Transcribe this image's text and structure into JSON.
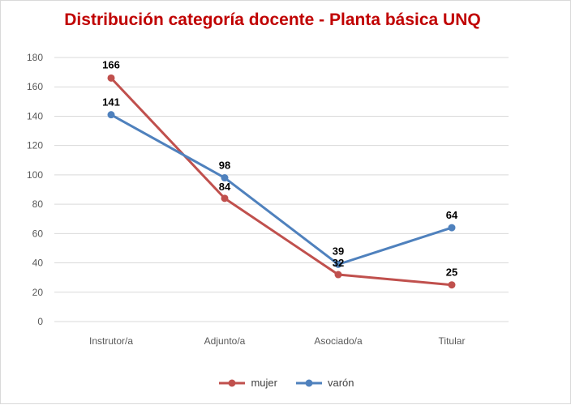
{
  "chart_data": {
    "type": "line",
    "title": "Distribución categoría docente - Planta básica UNQ",
    "categories": [
      "Instrutor/a",
      "Adjunto/a",
      "Asociado/a",
      "Titular"
    ],
    "series": [
      {
        "name": "mujer",
        "values": [
          166,
          84,
          32,
          25
        ],
        "color": "#c0504d"
      },
      {
        "name": "varón",
        "values": [
          141,
          98,
          39,
          64
        ],
        "color": "#4f81bd"
      }
    ],
    "ylim": [
      0,
      180
    ],
    "yticks": [
      0,
      20,
      40,
      60,
      80,
      100,
      120,
      140,
      160,
      180
    ],
    "grid": true,
    "legend": "bottom",
    "gridline_color": "#d9d9d9",
    "title_color": "#c00000"
  }
}
